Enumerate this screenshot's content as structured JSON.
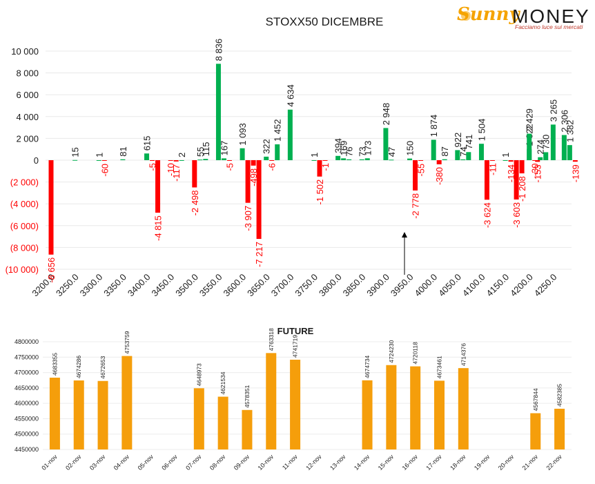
{
  "logo": {
    "brand_left": "Sunny",
    "brand_right": "MONEY",
    "tagline": "Facciamo luce sui mercati"
  },
  "colors": {
    "positive": "#00b050",
    "negative": "#ff0000",
    "future": "#f59e0b",
    "neg_label": "#ff0000",
    "pos_label": "#1a1a1a"
  },
  "chart_data": [
    {
      "type": "bar",
      "title": "STOXX50 DICEMBRE",
      "ylim": [
        -10000,
        10000
      ],
      "yticks": [
        "(10 000)",
        "(8 000)",
        "(6 000)",
        "(4 000)",
        "(2 000)",
        "0",
        "2 000",
        "4 000",
        "6 000",
        "8 000",
        "10 000"
      ],
      "categories": [
        "3200.0",
        "3250.0",
        "3300.0",
        "3350.0",
        "3400.0",
        "3450.0",
        "3500.0",
        "3550.0",
        "3600.0",
        "3650.0",
        "3700.0",
        "3750.0",
        "3800.0",
        "3850.0",
        "3900.0",
        "3950.0",
        "4000.0",
        "4050.0",
        "4100.0",
        "4150.0",
        "4200.0",
        "4250.0"
      ],
      "series": [
        {
          "values": [
            -8656,
            15,
            1,
            81,
            615,
            -10,
            -2498,
            8836,
            1093,
            322,
            4634,
            1,
            394,
            73,
            2948,
            150,
            1874,
            922,
            1504,
            1,
            1022,
            3265
          ],
          "labels": [
            "-8 656",
            "15",
            "1",
            "81",
            "615",
            "-10",
            "-2 498",
            "8 836",
            "1 093",
            "322",
            "4 634",
            "1",
            "394",
            "73",
            "2 948",
            "150",
            "1 874",
            "922",
            "1 504",
            "1",
            "1 022",
            "3 265"
          ]
        },
        {
          "values": [
            0,
            0,
            -60,
            0,
            -5,
            -117,
            55,
            167,
            -3907,
            -6,
            0,
            -1502,
            169,
            173,
            47,
            -2778,
            -380,
            74,
            -3624,
            -134,
            -30,
            0
          ],
          "labels": [
            "",
            "",
            "-60",
            "",
            "-5",
            "-117",
            "55",
            "167",
            "-3 907",
            "-6",
            "",
            "-1 502",
            "169",
            "173",
            "47",
            "-2 778",
            "-380",
            "74",
            "-3 624",
            "-134",
            "-30",
            ""
          ]
        },
        {
          "values": [
            0,
            0,
            0,
            0,
            -4815,
            2,
            115,
            -5,
            -498,
            1452,
            0,
            -1,
            76,
            0,
            0,
            -55,
            87,
            741,
            -11,
            -3603,
            274,
            2306
          ],
          "labels": [
            "",
            "",
            "",
            "",
            "-4 815",
            "2",
            "115",
            "-5",
            "-498",
            "1 452",
            "",
            "-1",
            "76",
            "",
            "",
            "-55",
            "87",
            "741",
            "-11",
            "-3 603",
            "274",
            "2 306"
          ]
        },
        {
          "values": [
            0,
            0,
            0,
            0,
            0,
            0,
            0,
            0,
            -7217,
            0,
            0,
            0,
            0,
            0,
            0,
            0,
            0,
            0,
            0,
            -1208,
            0,
            1382
          ],
          "labels": [
            "",
            "",
            "",
            "",
            "",
            "",
            "",
            "",
            "-7 217",
            "",
            "",
            "",
            "",
            "",
            "",
            "",
            "",
            "",
            "",
            "-1 208",
            "",
            "1 382"
          ]
        },
        {
          "values": [
            0,
            0,
            0,
            0,
            0,
            0,
            0,
            0,
            0,
            0,
            0,
            0,
            0,
            0,
            0,
            0,
            0,
            0,
            0,
            0,
            0,
            -139
          ],
          "labels": [
            "",
            "",
            "",
            "",
            "",
            "",
            "",
            "",
            "",
            "",
            "",
            "",
            "",
            "",
            "",
            "",
            "",
            "",
            "",
            "",
            "",
            "-139"
          ]
        }
      ],
      "extra_bars": [
        {
          "after_category": "4200.0",
          "values": [
            2429,
            -153,
            730
          ],
          "labels": [
            "2 429",
            "-153",
            "730"
          ]
        }
      ],
      "annotation": "arrow pointing up at 3950.0",
      "grid": true
    },
    {
      "type": "bar",
      "title": "FUTURE",
      "ylim": [
        4450000,
        4800000
      ],
      "yticks": [
        "4450000",
        "4500000",
        "4550000",
        "4600000",
        "4650000",
        "4700000",
        "4750000",
        "4800000"
      ],
      "categories": [
        "01-nov",
        "02-nov",
        "03-nov",
        "04-nov",
        "05-nov",
        "06-nov",
        "07-nov",
        "08-nov",
        "09-nov",
        "10-nov",
        "11-nov",
        "12-nov",
        "13-nov",
        "14-nov",
        "15-nov",
        "16-nov",
        "17-nov",
        "18-nov",
        "19-nov",
        "20-nov",
        "21-nov",
        "22-nov"
      ],
      "values": [
        4683355,
        4674286,
        4672653,
        4753759,
        null,
        null,
        4648973,
        4621534,
        4578351,
        4763318,
        4741719,
        null,
        null,
        4674734,
        4724230,
        4720118,
        4673461,
        4714376,
        null,
        null,
        4567844,
        4582385
      ],
      "labels": [
        "4683355",
        "4674286",
        "4672653",
        "4753759",
        "",
        "",
        "4648973",
        "4621534",
        "4578351",
        "4763318",
        "4741719",
        "",
        "",
        "4674734",
        "4724230",
        "4720118",
        "4673461",
        "4714376",
        "",
        "",
        "4567844",
        "4582385"
      ],
      "grid": true
    }
  ]
}
